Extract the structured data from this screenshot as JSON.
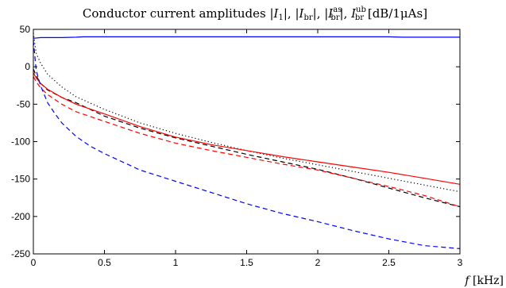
{
  "chart_data": {
    "type": "line",
    "title": "Conductor current amplitudes |I₁|, |I_br|, |I_br^as|, I_br^ub [dB/1μAs]",
    "title_parts": {
      "prefix": "Conductor current amplitudes |",
      "i1_main": "I",
      "i1_sub": "1",
      "sep1": "|, |",
      "br_main": "I",
      "br_sub": "br",
      "sep2": "|, |",
      "as_main": "I",
      "as_sup": "as",
      "as_sub": "br",
      "sep3": "|, ",
      "ub_main": "I",
      "ub_sup": "ub",
      "ub_sub": "br",
      "unit": " [dB/1μAs]"
    },
    "xlabel": "f [kHz]",
    "xlabel_parts": {
      "var": "f",
      "unit": "[kHz]"
    },
    "ylabel": "",
    "xlim": [
      0,
      3
    ],
    "ylim": [
      -250,
      50
    ],
    "x_ticks": [
      0,
      0.5,
      1,
      1.5,
      2,
      2.5,
      3
    ],
    "x_tick_labels": [
      "0",
      "0.5",
      "1",
      "1.5",
      "2",
      "2.5",
      "3"
    ],
    "y_ticks": [
      50,
      0,
      -50,
      -100,
      -150,
      -200,
      -250
    ],
    "y_tick_labels": [
      "50",
      "0",
      "-50",
      "-100",
      "-150",
      "-200",
      "-250"
    ],
    "grid": false,
    "legend": "none",
    "series": [
      {
        "color": "#0000ff",
        "style": "solid",
        "x": [
          0,
          0.05,
          0.1,
          0.2,
          0.3,
          0.35,
          0.5,
          1,
          1.5,
          2,
          2.5,
          2.6,
          3
        ],
        "y": [
          38,
          39,
          39,
          39,
          39.5,
          40,
          40,
          40,
          40,
          40,
          40,
          39.5,
          39.5
        ]
      },
      {
        "color": "#000000",
        "style": "dotted",
        "x": [
          0,
          0.02,
          0.05,
          0.1,
          0.2,
          0.3,
          0.5,
          0.75,
          1,
          1.25,
          1.5,
          1.75,
          2,
          2.25,
          2.5,
          2.75,
          3
        ],
        "y": [
          45,
          18,
          5,
          -10,
          -27,
          -40,
          -57,
          -75,
          -89,
          -101,
          -112,
          -122,
          -131,
          -140,
          -149,
          -158,
          -167
        ]
      },
      {
        "color": "#000000",
        "style": "dashed",
        "x": [
          0,
          0.02,
          0.05,
          0.1,
          0.2,
          0.3,
          0.5,
          0.75,
          1,
          1.25,
          1.5,
          1.75,
          2,
          2.25,
          2.5,
          2.75,
          3
        ],
        "y": [
          -3,
          -12,
          -22,
          -31,
          -41,
          -48,
          -66,
          -82,
          -95,
          -106,
          -117,
          -127,
          -137,
          -149,
          -162,
          -175,
          -187
        ]
      },
      {
        "color": "#ff0000",
        "style": "solid",
        "x": [
          0,
          0.02,
          0.05,
          0.1,
          0.2,
          0.3,
          0.5,
          0.75,
          1,
          1.25,
          1.5,
          1.75,
          2,
          2.25,
          2.5,
          2.75,
          3
        ],
        "y": [
          -8,
          -15,
          -22,
          -30,
          -41,
          -50,
          -63,
          -80,
          -94,
          -104,
          -112,
          -120,
          -127,
          -134,
          -141,
          -149,
          -157
        ]
      },
      {
        "color": "#ff0000",
        "style": "dashed",
        "x": [
          0,
          0.02,
          0.05,
          0.1,
          0.2,
          0.3,
          0.5,
          0.75,
          1,
          1.25,
          1.5,
          1.75,
          2,
          2.25,
          2.5,
          2.75,
          3
        ],
        "y": [
          -13,
          -20,
          -28,
          -37,
          -50,
          -60,
          -73,
          -89,
          -102,
          -112,
          -121,
          -130,
          -138,
          -149,
          -160,
          -172,
          -187
        ]
      },
      {
        "color": "#0000ff",
        "style": "dashed",
        "x": [
          0,
          0.02,
          0.05,
          0.1,
          0.15,
          0.2,
          0.3,
          0.4,
          0.5,
          0.75,
          1,
          1.25,
          1.5,
          1.75,
          2,
          2.25,
          2.5,
          2.75,
          3
        ],
        "y": [
          35,
          -5,
          -25,
          -48,
          -62,
          -75,
          -93,
          -106,
          -116,
          -138,
          -153,
          -168,
          -183,
          -196,
          -207,
          -219,
          -230,
          -239,
          -243
        ]
      }
    ]
  }
}
